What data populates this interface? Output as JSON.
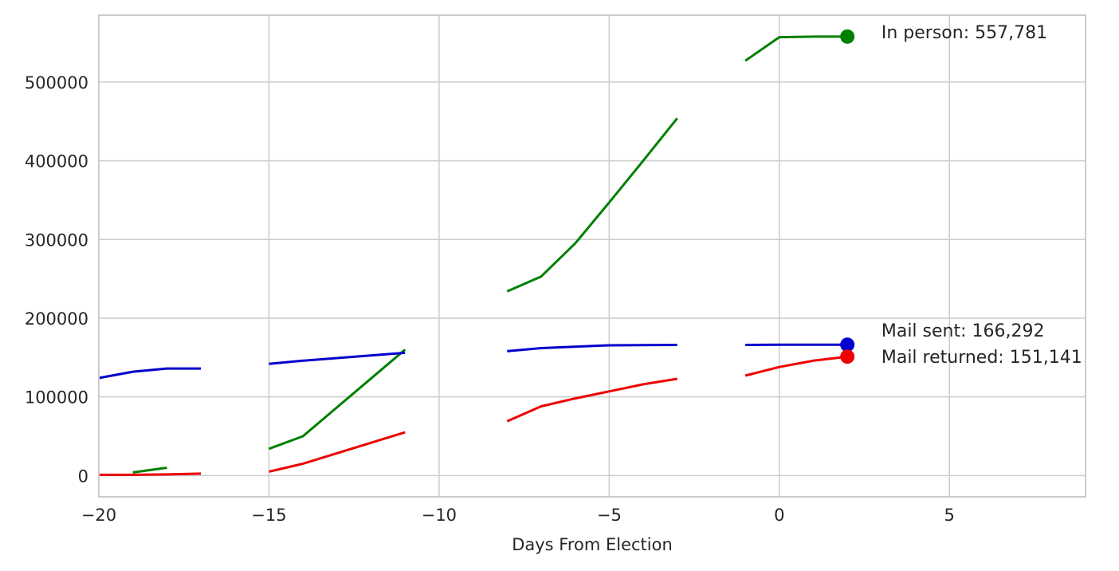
{
  "chart_data": {
    "type": "line",
    "xlabel": "Days From Election",
    "ylabel": "",
    "xlim": [
      -20,
      9
    ],
    "ylim": [
      -27000,
      585000
    ],
    "grid": true,
    "x_ticks": [
      -20,
      -15,
      -10,
      -5,
      0,
      5
    ],
    "x_tick_labels": [
      "−20",
      "−15",
      "−10",
      "−5",
      "0",
      "5"
    ],
    "y_ticks": [
      0,
      100000,
      200000,
      300000,
      400000,
      500000
    ],
    "y_tick_labels": [
      "0",
      "100000",
      "200000",
      "300000",
      "400000",
      "500000"
    ],
    "series": [
      {
        "name": "In person",
        "color": "#008000",
        "segments": [
          [
            [
              -19,
              4000
            ],
            [
              -18,
              10000
            ]
          ],
          [
            [
              -15,
              34000
            ],
            [
              -14,
              50000
            ],
            [
              -11,
              160000
            ]
          ],
          [
            [
              -8,
              234000
            ],
            [
              -7,
              253000
            ],
            [
              -6,
              295000
            ],
            [
              -5,
              347000
            ],
            [
              -4,
              400000
            ],
            [
              -3,
              454000
            ]
          ],
          [
            [
              -1,
              527000
            ],
            [
              0,
              557000
            ],
            [
              1,
              557700
            ],
            [
              2,
              557781
            ]
          ]
        ],
        "end_point": [
          2,
          557781
        ],
        "end_label": "In person: 557,781"
      },
      {
        "name": "Mail sent",
        "color": "#0000cc",
        "segments": [
          [
            [
              -20,
              124000
            ],
            [
              -19,
              132000
            ],
            [
              -18,
              136000
            ],
            [
              -17,
              136000
            ]
          ],
          [
            [
              -15,
              142000
            ],
            [
              -14,
              146000
            ],
            [
              -11,
              156000
            ]
          ],
          [
            [
              -8,
              158000
            ],
            [
              -7,
              162000
            ],
            [
              -5,
              165500
            ],
            [
              -3,
              166000
            ]
          ],
          [
            [
              -1,
              166000
            ],
            [
              0,
              166200
            ],
            [
              2,
              166292
            ]
          ]
        ],
        "end_point": [
          2,
          166292
        ],
        "end_label": "Mail sent: 166,292"
      },
      {
        "name": "Mail returned",
        "color": "#ee0000",
        "segments": [
          [
            [
              -20,
              1000
            ],
            [
              -19,
              1000
            ],
            [
              -18,
              1500
            ],
            [
              -17,
              2500
            ]
          ],
          [
            [
              -15,
              5000
            ],
            [
              -14,
              15000
            ],
            [
              -11,
              55000
            ]
          ],
          [
            [
              -8,
              69000
            ],
            [
              -7,
              88000
            ],
            [
              -6,
              98000
            ],
            [
              -5,
              107000
            ],
            [
              -4,
              116000
            ],
            [
              -3,
              123000
            ]
          ],
          [
            [
              -1,
              127000
            ],
            [
              0,
              138000
            ],
            [
              1,
              146000
            ],
            [
              2,
              151141
            ]
          ]
        ],
        "end_point": [
          2,
          151141
        ],
        "end_label": "Mail returned: 151,141"
      }
    ]
  }
}
